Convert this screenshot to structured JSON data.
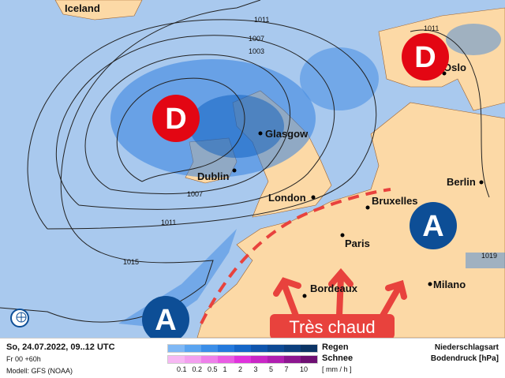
{
  "map": {
    "cities": [
      {
        "name": "Iceland"
      },
      {
        "name": "Glasgow"
      },
      {
        "name": "Dublin"
      },
      {
        "name": "London"
      },
      {
        "name": "Bruxelles"
      },
      {
        "name": "Paris"
      },
      {
        "name": "Berlin"
      },
      {
        "name": "Bordeaux"
      },
      {
        "name": "Milano"
      },
      {
        "name": "Oslo"
      }
    ],
    "isobars": [
      "1011",
      "1007",
      "1003",
      "1007",
      "1011",
      "1015",
      "1011",
      "1019"
    ],
    "pressure_centers": [
      {
        "type": "low",
        "label": "D",
        "color": "#e30613"
      },
      {
        "type": "low",
        "label": "D",
        "color": "#e30613"
      },
      {
        "type": "high",
        "label": "A",
        "color": "#0d4e96"
      },
      {
        "type": "high",
        "label": "A",
        "color": "#0d4e96"
      }
    ],
    "callout": {
      "text": "Très chaud",
      "color": "#e8423d"
    },
    "colors": {
      "sea": "#a9c9ee",
      "land": "#fcd9a6",
      "rain": "#2f7fe0"
    }
  },
  "legend": {
    "date": "So, 24.07.2022, 09..12 UTC",
    "run": "Fr 00 +60h",
    "model": "Modell: GFS (NOAA)",
    "rain_label": "Regen",
    "snow_label": "Schnee",
    "unit": "[ mm / h ]",
    "ticks": [
      "0.1",
      "0.2",
      "0.5",
      "1",
      "2",
      "3",
      "5",
      "7",
      "10"
    ],
    "rain_colors": [
      "#7fb8f5",
      "#5aa4f0",
      "#3b8ee8",
      "#2479dc",
      "#1566c8",
      "#0f55ad",
      "#0d4a95",
      "#0c3f7e",
      "#0b3465"
    ],
    "snow_colors": [
      "#f7b8f3",
      "#f3a0ef",
      "#ee80ea",
      "#e85ce3",
      "#df33dc",
      "#c927c6",
      "#b01fb0",
      "#8d1690",
      "#6e0f72"
    ],
    "title1": "Niederschlagsart",
    "title2": "Bodendruck [hPa]"
  }
}
